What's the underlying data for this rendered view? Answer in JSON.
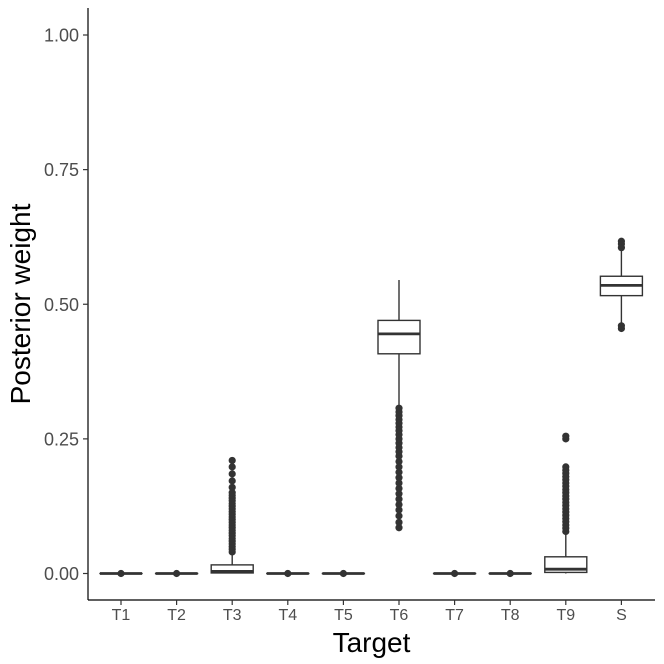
{
  "chart_data": {
    "type": "boxplot",
    "xlabel": "Target",
    "ylabel": "Posterior weight",
    "ylim": [
      -0.05,
      1.05
    ],
    "yticks": [
      0.0,
      0.25,
      0.5,
      0.75,
      1.0
    ],
    "ytick_labels": [
      "0.00",
      "0.25",
      "0.50",
      "0.75",
      "1.00"
    ],
    "grid": false,
    "categories": [
      "T1",
      "T2",
      "T3",
      "T4",
      "T5",
      "T6",
      "T7",
      "T8",
      "T9",
      "S"
    ],
    "boxes": [
      {
        "category": "T1",
        "whisker_low": 0.0,
        "q1": 0.0,
        "median": 0.0,
        "q3": 0.0,
        "whisker_high": 0.0,
        "outliers": [
          0.0
        ]
      },
      {
        "category": "T2",
        "whisker_low": 0.0,
        "q1": 0.0,
        "median": 0.0,
        "q3": 0.0,
        "whisker_high": 0.0,
        "outliers": [
          0.0
        ]
      },
      {
        "category": "T3",
        "whisker_low": 0.0,
        "q1": 0.001,
        "median": 0.004,
        "q3": 0.016,
        "whisker_high": 0.038,
        "outliers": [
          0.04,
          0.045,
          0.05,
          0.055,
          0.06,
          0.065,
          0.07,
          0.075,
          0.08,
          0.085,
          0.09,
          0.095,
          0.1,
          0.105,
          0.11,
          0.115,
          0.12,
          0.125,
          0.13,
          0.135,
          0.14,
          0.145,
          0.15,
          0.16,
          0.172,
          0.185,
          0.198,
          0.21
        ]
      },
      {
        "category": "T4",
        "whisker_low": 0.0,
        "q1": 0.0,
        "median": 0.0,
        "q3": 0.0,
        "whisker_high": 0.0,
        "outliers": [
          0.0
        ]
      },
      {
        "category": "T5",
        "whisker_low": 0.0,
        "q1": 0.0,
        "median": 0.0,
        "q3": 0.0,
        "whisker_high": 0.0,
        "outliers": [
          0.0
        ]
      },
      {
        "category": "T6",
        "whisker_low": 0.31,
        "q1": 0.408,
        "median": 0.445,
        "q3": 0.47,
        "whisker_high": 0.545,
        "outliers": [
          0.085,
          0.095,
          0.107,
          0.118,
          0.128,
          0.138,
          0.148,
          0.158,
          0.168,
          0.178,
          0.188,
          0.198,
          0.208,
          0.218,
          0.226,
          0.234,
          0.242,
          0.25,
          0.258,
          0.265,
          0.272,
          0.279,
          0.286,
          0.293,
          0.3,
          0.307
        ]
      },
      {
        "category": "T7",
        "whisker_low": 0.0,
        "q1": 0.0,
        "median": 0.0,
        "q3": 0.0,
        "whisker_high": 0.0,
        "outliers": [
          0.0
        ]
      },
      {
        "category": "T8",
        "whisker_low": 0.0,
        "q1": 0.0,
        "median": 0.0,
        "q3": 0.0,
        "whisker_high": 0.0,
        "outliers": [
          0.0
        ]
      },
      {
        "category": "T9",
        "whisker_low": 0.0,
        "q1": 0.002,
        "median": 0.008,
        "q3": 0.031,
        "whisker_high": 0.075,
        "outliers": [
          0.078,
          0.084,
          0.09,
          0.096,
          0.102,
          0.108,
          0.114,
          0.12,
          0.126,
          0.132,
          0.138,
          0.144,
          0.15,
          0.156,
          0.162,
          0.168,
          0.174,
          0.18,
          0.186,
          0.192,
          0.198,
          0.25,
          0.255
        ]
      },
      {
        "category": "S",
        "whisker_low": 0.465,
        "q1": 0.516,
        "median": 0.535,
        "q3": 0.552,
        "whisker_high": 0.6,
        "outliers": [
          0.455,
          0.46,
          0.605,
          0.612,
          0.617
        ]
      }
    ]
  }
}
